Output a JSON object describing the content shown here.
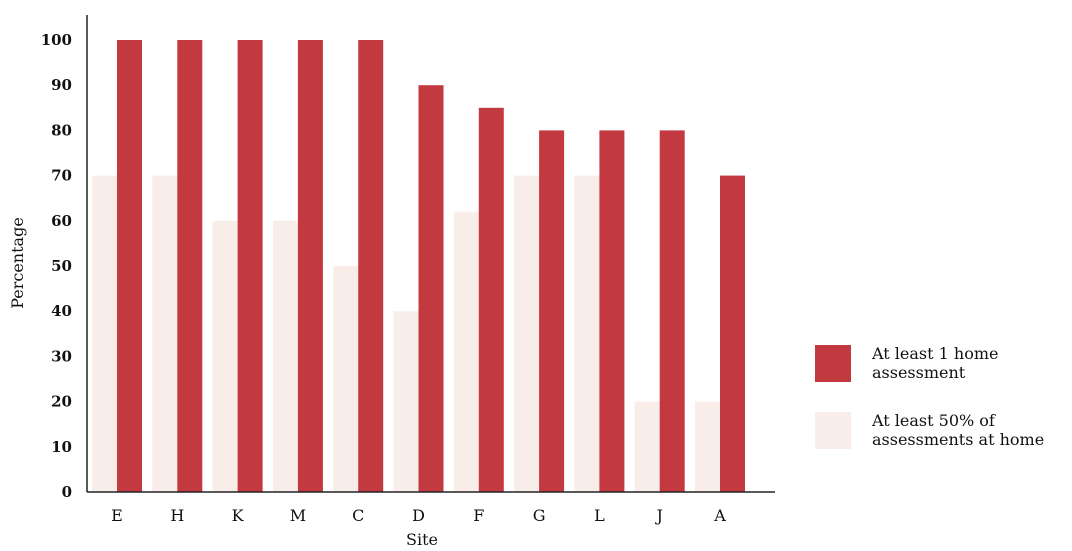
{
  "chart_data": {
    "type": "bar",
    "title": "",
    "xlabel": "Site",
    "ylabel": "Percentage",
    "ylim": [
      0,
      105
    ],
    "yticks": [
      0,
      10,
      20,
      30,
      40,
      50,
      60,
      70,
      80,
      90,
      100
    ],
    "grid": false,
    "legend_position": "right",
    "categories": [
      "E",
      "H",
      "K",
      "M",
      "C",
      "D",
      "F",
      "G",
      "L",
      "J",
      "A"
    ],
    "series": [
      {
        "name": "At least 50% of assessments at home",
        "legend_lines": [
          "At least 50% of",
          "assessments at home"
        ],
        "color": "#f9ede9",
        "values": [
          70,
          70,
          60,
          60,
          50,
          40,
          62,
          70,
          70,
          20,
          20
        ]
      },
      {
        "name": "At least 1 home assessment",
        "legend_lines": [
          "At least 1 home",
          "assessment"
        ],
        "color": "#c33940",
        "values": [
          100,
          100,
          100,
          100,
          100,
          90,
          85,
          80,
          80,
          80,
          70
        ]
      }
    ]
  }
}
